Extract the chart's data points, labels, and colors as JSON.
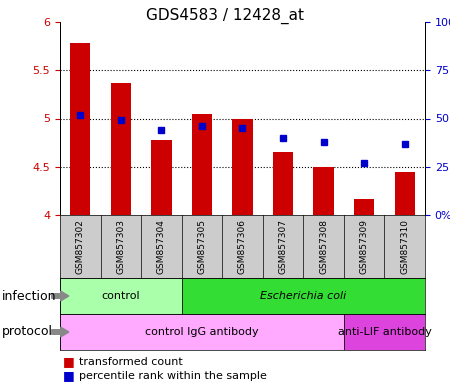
{
  "title": "GDS4583 / 12428_at",
  "samples": [
    "GSM857302",
    "GSM857303",
    "GSM857304",
    "GSM857305",
    "GSM857306",
    "GSM857307",
    "GSM857308",
    "GSM857309",
    "GSM857310"
  ],
  "transformed_counts": [
    5.78,
    5.37,
    4.78,
    5.05,
    4.99,
    4.65,
    4.5,
    4.17,
    4.45
  ],
  "percentile_ranks": [
    52,
    49,
    44,
    46,
    45,
    40,
    38,
    27,
    37
  ],
  "ylim_left": [
    4.0,
    6.0
  ],
  "ylim_right": [
    0,
    100
  ],
  "yticks_left": [
    4.0,
    4.5,
    5.0,
    5.5,
    6.0
  ],
  "yticks_right": [
    0,
    25,
    50,
    75,
    100
  ],
  "bar_color": "#cc0000",
  "dot_color": "#0000cc",
  "infection_labels": [
    {
      "text": "control",
      "start": 0,
      "end": 3,
      "color": "#aaffaa",
      "italic": false
    },
    {
      "text": "Escherichia coli",
      "start": 3,
      "end": 9,
      "color": "#33dd33",
      "italic": true
    }
  ],
  "protocol_labels": [
    {
      "text": "control IgG antibody",
      "start": 0,
      "end": 7,
      "color": "#ffaaff"
    },
    {
      "text": "anti-LIF antibody",
      "start": 7,
      "end": 9,
      "color": "#dd44dd"
    }
  ],
  "sample_bg_color": "#cccccc",
  "legend_items": [
    {
      "color": "#cc0000",
      "label": "transformed count"
    },
    {
      "color": "#0000cc",
      "label": "percentile rank within the sample"
    }
  ],
  "infection_row_label": "infection",
  "protocol_row_label": "protocol",
  "title_fontsize": 11,
  "axis_fontsize": 8,
  "legend_fontsize": 8,
  "label_fontsize": 8,
  "sample_fontsize": 6.5,
  "row_label_fontsize": 9
}
